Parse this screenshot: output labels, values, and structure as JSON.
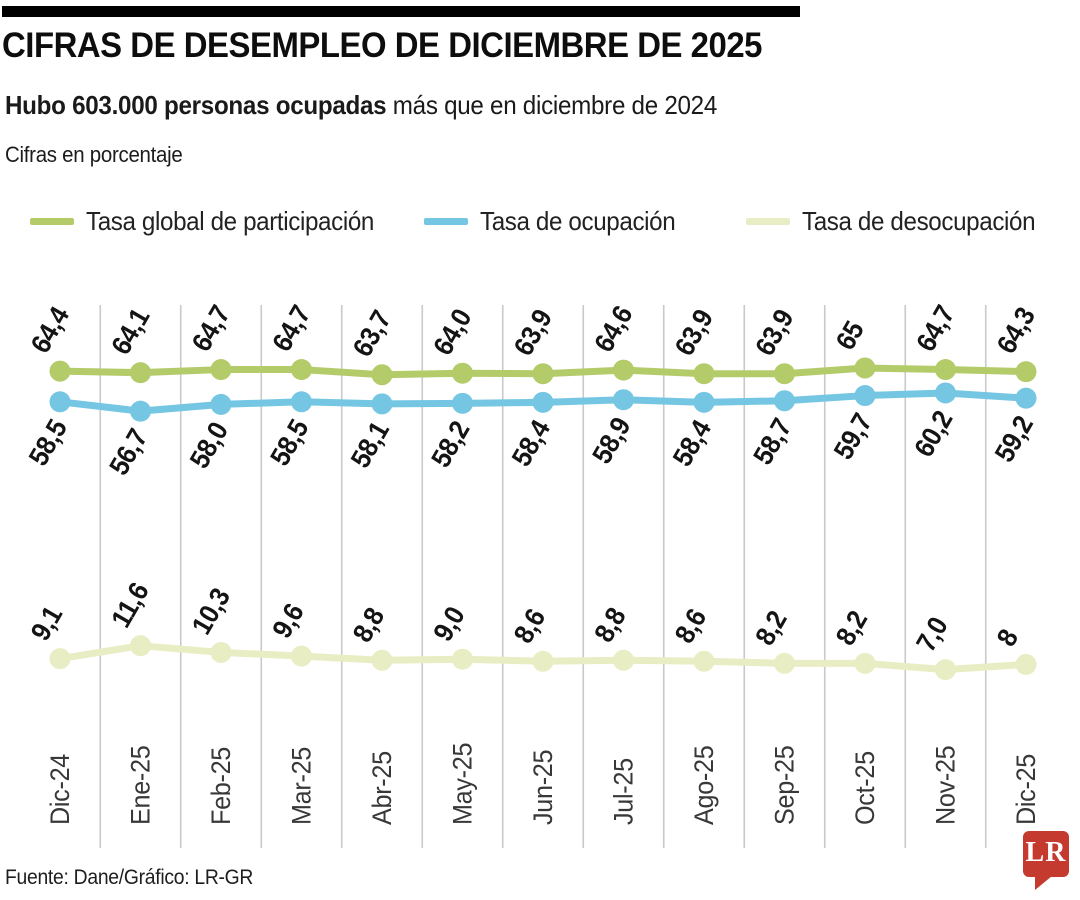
{
  "header": {
    "title": "CIFRAS DE DESEMPLEO DE DICIEMBRE DE 2025",
    "subtitle_bold": "Hubo 603.000 personas ocupadas",
    "subtitle_rest": " más que en diciembre de 2024",
    "note": "Cifras en porcentaje"
  },
  "legend": [
    {
      "label": "Tasa global de participación",
      "color": "#b4cb6a"
    },
    {
      "label": "Tasa de ocupación",
      "color": "#74c6e3"
    },
    {
      "label": "Tasa de desocupación",
      "color": "#e9edc3"
    }
  ],
  "chart_data": {
    "type": "line",
    "title": "Cifras de desempleo de diciembre de 2025",
    "unit": "percent",
    "grid": "vertical-separators-between-columns",
    "grid_color": "#c9c9c9",
    "label_color": "#141414",
    "axis_label_color": "#383838",
    "categories": [
      "Dic-24",
      "Ene-25",
      "Feb-25",
      "Mar-25",
      "Abr-25",
      "May-25",
      "Jun-25",
      "Jul-25",
      "Ago-25",
      "Sep-25",
      "Oct-25",
      "Nov-25",
      "Dic-25"
    ],
    "series": [
      {
        "name": "Tasa global de participación",
        "color": "#b4cb6a",
        "values": [
          64.4,
          64.1,
          64.7,
          64.7,
          63.7,
          64.0,
          63.9,
          64.6,
          63.9,
          63.9,
          65,
          64.7,
          64.3
        ],
        "labels": [
          "64,4",
          "64,1",
          "64,7",
          "64,7",
          "63,7",
          "64,0",
          "63,9",
          "64,6",
          "63,9",
          "63,9",
          "65",
          "64,7",
          "64,3"
        ],
        "label_position": "above"
      },
      {
        "name": "Tasa de ocupación",
        "color": "#74c6e3",
        "values": [
          58.5,
          56.7,
          58.0,
          58.5,
          58.1,
          58.2,
          58.4,
          58.9,
          58.4,
          58.7,
          59.7,
          60.2,
          59.2
        ],
        "labels": [
          "58,5",
          "56,7",
          "58,0",
          "58,5",
          "58,1",
          "58,2",
          "58,4",
          "58,9",
          "58,4",
          "58,7",
          "59,7",
          "60,2",
          "59,2"
        ],
        "label_position": "below"
      },
      {
        "name": "Tasa de desocupación",
        "color": "#e9edc3",
        "values": [
          9.1,
          11.6,
          10.3,
          9.6,
          8.8,
          9.0,
          8.6,
          8.8,
          8.6,
          8.2,
          8.2,
          7.0,
          8
        ],
        "labels": [
          "9,1",
          "11,6",
          "10,3",
          "9,6",
          "8,8",
          "9,0",
          "8,6",
          "8,8",
          "8,6",
          "8,2",
          "8,2",
          "7,0",
          "8"
        ],
        "label_position": "above"
      }
    ]
  },
  "footer": {
    "source": "Fuente: Dane/Gráfico: LR-GR",
    "logo_text": "LR",
    "logo_color": "#c43a2f"
  }
}
